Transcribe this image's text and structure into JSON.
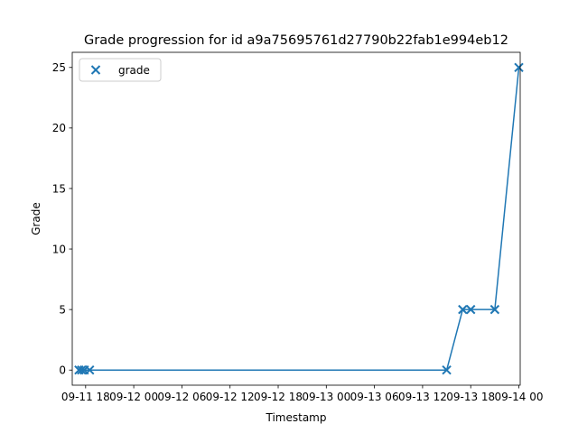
{
  "chart_data": {
    "type": "line",
    "title": "Grade progression for id a9a75695761d27790b22fab1e994eb12",
    "xlabel": "Timestamp",
    "ylabel": "Grade",
    "x_ticks": [
      "09-11 18",
      "09-12 00",
      "09-12 06",
      "09-12 12",
      "09-12 18",
      "09-13 00",
      "09-13 06",
      "09-13 12",
      "09-13 18",
      "09-14 00"
    ],
    "xlim": [
      "09-11 16:20",
      "09-14 00:10"
    ],
    "y_ticks": [
      "0",
      "5",
      "10",
      "15",
      "20",
      "25"
    ],
    "ylim": [
      -1.25,
      26.25
    ],
    "series": [
      {
        "name": "grade",
        "marker": "x",
        "color": "#1f77b4",
        "points": [
          {
            "x": "09-11 17:10",
            "y": 0
          },
          {
            "x": "09-11 17:30",
            "y": 0
          },
          {
            "x": "09-11 17:50",
            "y": 0
          },
          {
            "x": "09-11 18:30",
            "y": 0
          },
          {
            "x": "09-13 15:00",
            "y": 0
          },
          {
            "x": "09-13 17:00",
            "y": 5
          },
          {
            "x": "09-13 18:00",
            "y": 5
          },
          {
            "x": "09-13 21:00",
            "y": 5
          },
          {
            "x": "09-14 00:00",
            "y": 25
          }
        ]
      }
    ],
    "legend": {
      "position": "top-left",
      "labels": [
        "grade"
      ]
    },
    "grid": false
  }
}
